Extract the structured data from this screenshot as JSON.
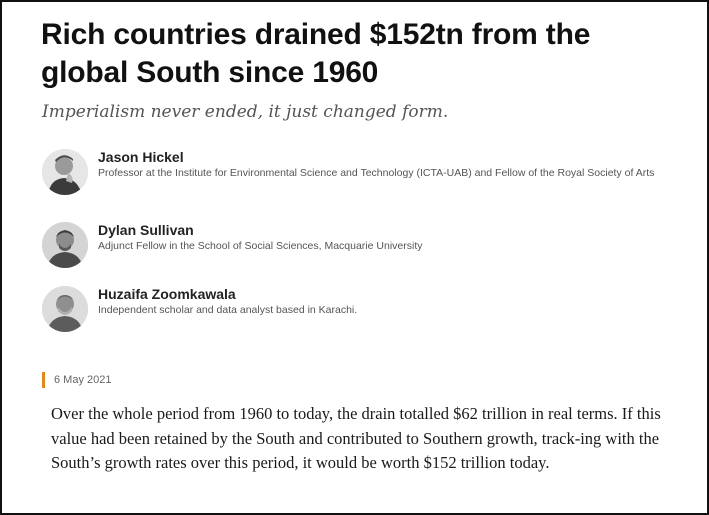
{
  "article": {
    "title": "Rich countries drained $152tn from the global South since 1960",
    "subtitle": "Imperialism never ended, it just changed form.",
    "date": "6 May 2021",
    "body": "Over the whole period from 1960 to today, the drain totalled $62 trillion in real terms. If this value had been retained by the South and contributed to Southern growth, track-ing with the South’s growth rates over this period, it would be worth $152 trillion today."
  },
  "authors": [
    {
      "name": "Jason Hickel",
      "role": "Professor at the Institute for Environmental Science and Technology (ICTA-UAB) and Fellow of the Royal Society of Arts",
      "avatar_icon": "person-photo-icon"
    },
    {
      "name": "Dylan Sullivan",
      "role": "Adjunct Fellow in the School of Social Sciences, Macquarie University",
      "avatar_icon": "person-photo-icon"
    },
    {
      "name": "Huzaifa Zoomkawala",
      "role": "Independent scholar and data analyst based in Karachi.",
      "avatar_icon": "person-photo-icon"
    }
  ],
  "colors": {
    "date_accent": "#e08a1e",
    "text": "#111111",
    "muted": "#555555"
  }
}
